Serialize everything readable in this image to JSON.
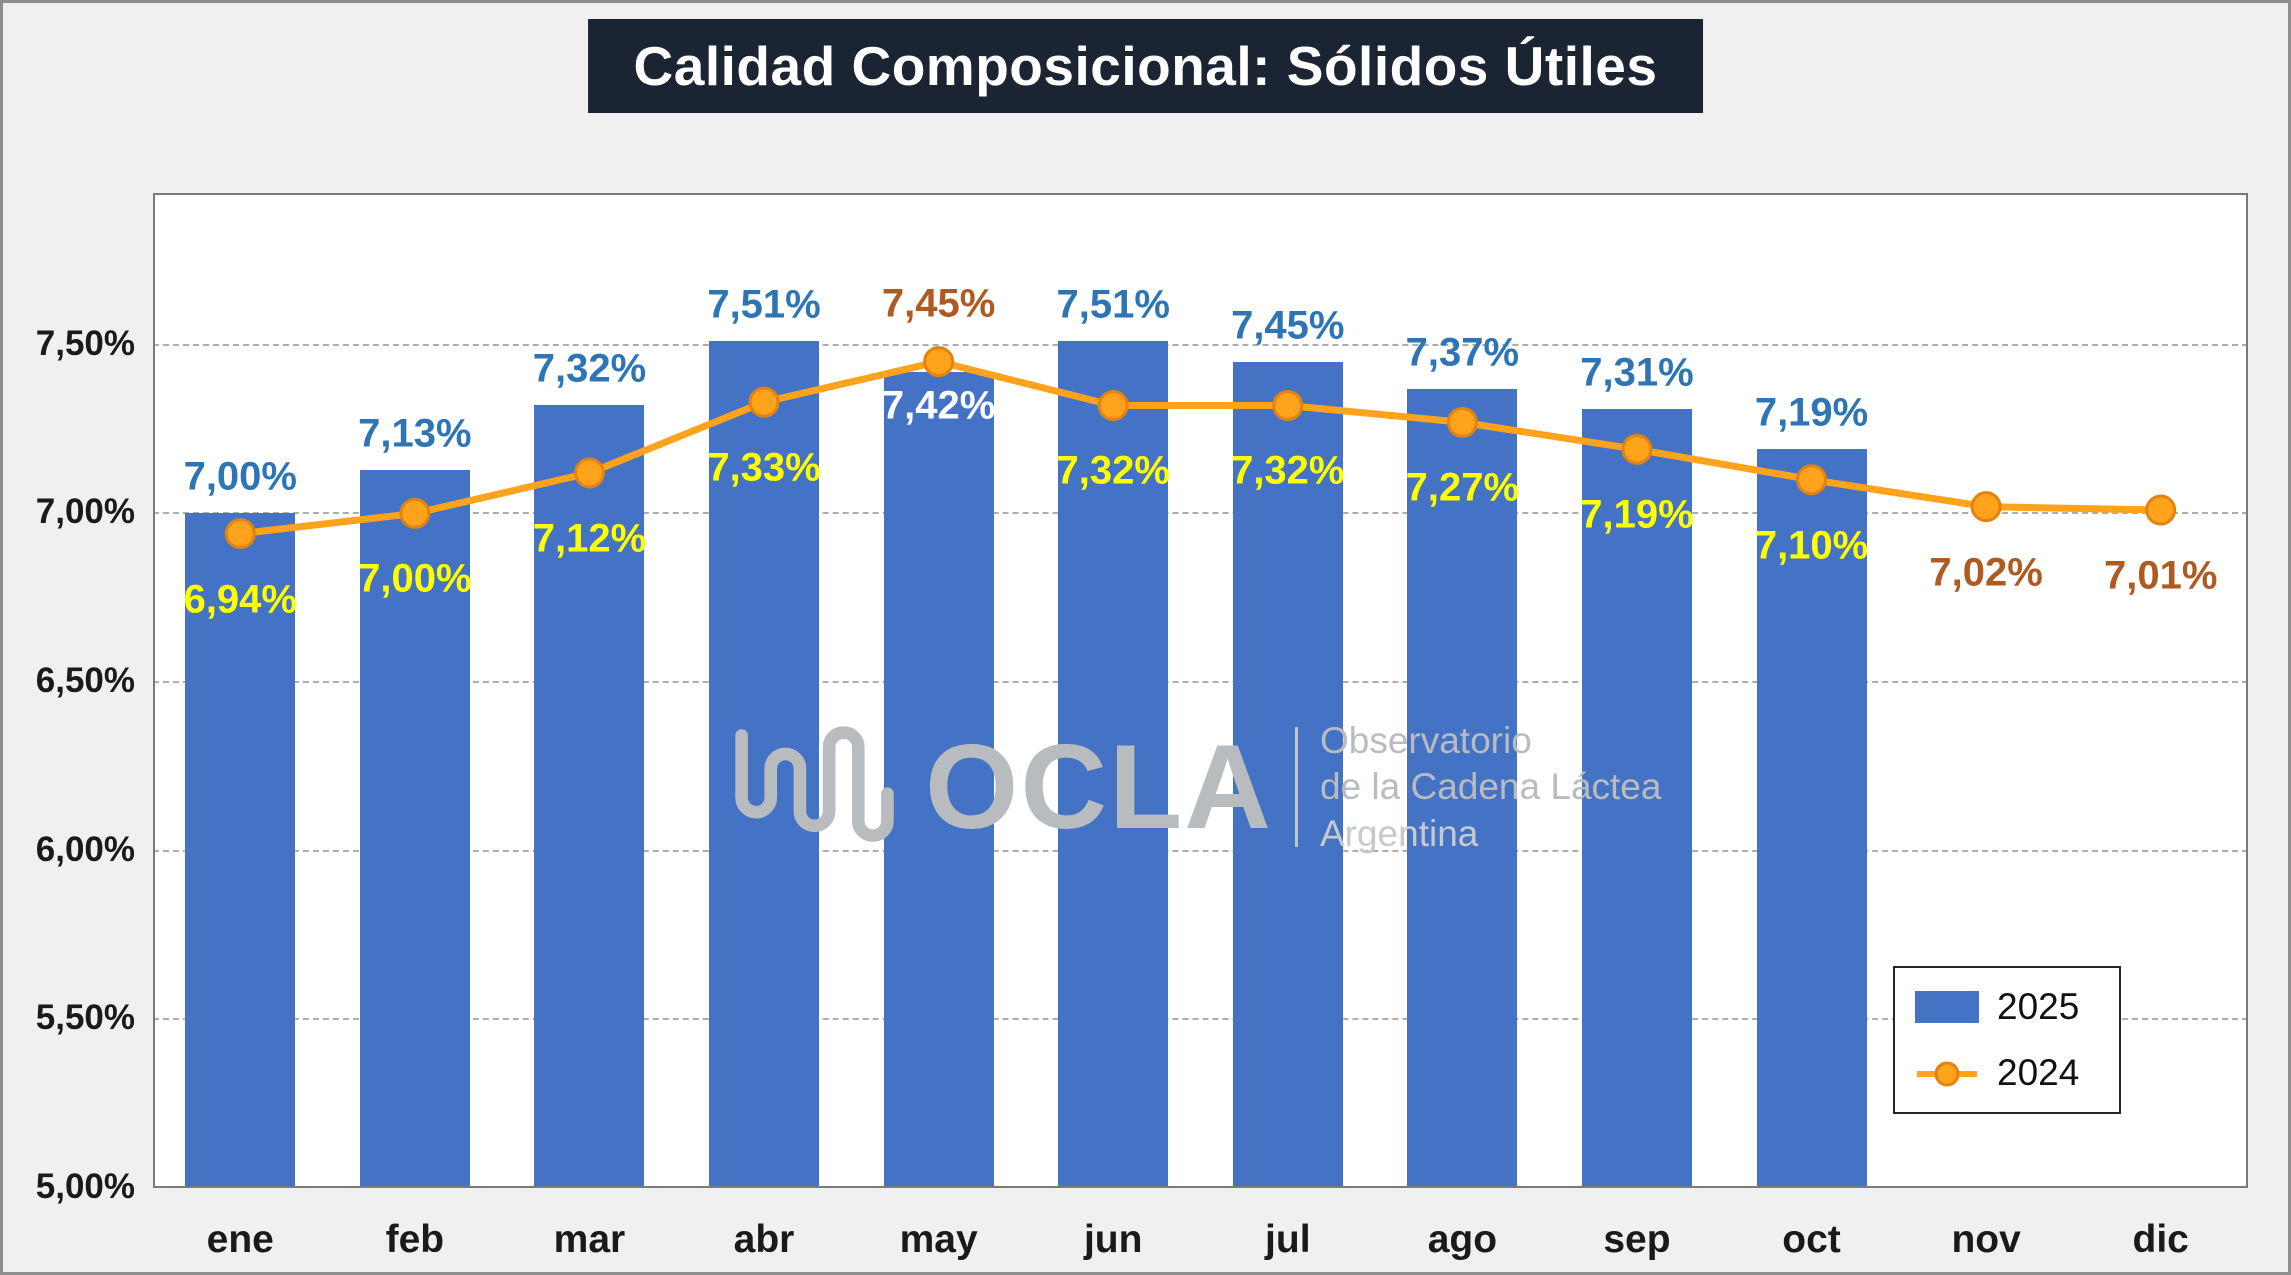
{
  "title": "Calidad Composicional: Sólidos Útiles",
  "watermark": {
    "name": "OCLA",
    "lines": [
      "Observatorio",
      "de la Cadena Láctea",
      "Argentina"
    ]
  },
  "legend": {
    "items": [
      {
        "label": "2025",
        "type": "bar",
        "color": "#4472C4"
      },
      {
        "label": "2024",
        "type": "line",
        "color": "#FFA21C"
      }
    ]
  },
  "colors": {
    "bar_2025": "#4472C4",
    "line_2024": "#FFA21C",
    "marker_stroke": "#E2830F",
    "label_2025_blue": "#2E75B6",
    "label_2024_yellow": "#FFFF00",
    "label_2024_brown": "#AE5A21",
    "label_inside_white": "#FFFFFF",
    "title_bg": "#1B2433",
    "gridline": "#ADADAD",
    "canvas_bg": "#F0F0F0",
    "watermark_gray": "#B8BCBF"
  },
  "chart_data": {
    "type": "bar",
    "title": "Calidad Composicional: Sólidos Útiles",
    "categories": [
      "ene",
      "feb",
      "mar",
      "abr",
      "may",
      "jun",
      "jul",
      "ago",
      "sep",
      "oct",
      "nov",
      "dic"
    ],
    "series": [
      {
        "name": "2025",
        "chart_type": "bar",
        "color": "#4472C4",
        "values": [
          7.0,
          7.13,
          7.32,
          7.51,
          7.42,
          7.51,
          7.45,
          7.37,
          7.31,
          7.19,
          null,
          null
        ],
        "data_labels": [
          {
            "text": "7,00%",
            "color": "#2E75B6",
            "position": "above"
          },
          {
            "text": "7,13%",
            "color": "#2E75B6",
            "position": "above"
          },
          {
            "text": "7,32%",
            "color": "#2E75B6",
            "position": "above"
          },
          {
            "text": "7,51%",
            "color": "#2E75B6",
            "position": "above"
          },
          {
            "text": "7,42%",
            "color": "#FFFFFF",
            "position": "inside"
          },
          {
            "text": "7,51%",
            "color": "#2E75B6",
            "position": "above"
          },
          {
            "text": "7,45%",
            "color": "#2E75B6",
            "position": "above"
          },
          {
            "text": "7,37%",
            "color": "#2E75B6",
            "position": "above"
          },
          {
            "text": "7,31%",
            "color": "#2E75B6",
            "position": "above"
          },
          {
            "text": "7,19%",
            "color": "#2E75B6",
            "position": "above"
          },
          {
            "text": ""
          },
          {
            "text": ""
          }
        ]
      },
      {
        "name": "2024",
        "chart_type": "line",
        "color": "#FFA21C",
        "marker_stroke": "#E2830F",
        "values": [
          6.94,
          7.0,
          7.12,
          7.33,
          7.45,
          7.32,
          7.32,
          7.27,
          7.19,
          7.1,
          7.02,
          7.01
        ],
        "data_labels": [
          {
            "text": "6,94%",
            "color": "#FFFF00",
            "position": "below"
          },
          {
            "text": "7,00%",
            "color": "#FFFF00",
            "position": "below"
          },
          {
            "text": "7,12%",
            "color": "#FFFF00",
            "position": "below"
          },
          {
            "text": "7,33%",
            "color": "#FFFF00",
            "position": "below"
          },
          {
            "text": "7,45%",
            "color": "#AE5A21",
            "position": "above"
          },
          {
            "text": "7,32%",
            "color": "#FFFF00",
            "position": "below"
          },
          {
            "text": "7,32%",
            "color": "#FFFF00",
            "position": "below"
          },
          {
            "text": "7,27%",
            "color": "#FFFF00",
            "position": "below"
          },
          {
            "text": "7,19%",
            "color": "#FFFF00",
            "position": "below"
          },
          {
            "text": "7,10%",
            "color": "#FFFF00",
            "position": "below"
          },
          {
            "text": "7,02%",
            "color": "#AE5A21",
            "position": "below"
          },
          {
            "text": "7,01%",
            "color": "#AE5A21",
            "position": "below"
          }
        ]
      }
    ],
    "ylim": [
      5.0,
      7.95
    ],
    "yticks": [
      {
        "value": 5.0,
        "label": "5,00%"
      },
      {
        "value": 5.5,
        "label": "5,50%"
      },
      {
        "value": 6.0,
        "label": "6,00%"
      },
      {
        "value": 6.5,
        "label": "6,50%"
      },
      {
        "value": 7.0,
        "label": "7,00%"
      },
      {
        "value": 7.5,
        "label": "7,50%"
      }
    ],
    "grid": "dashed-horizontal",
    "legend_position": "bottom-right"
  }
}
